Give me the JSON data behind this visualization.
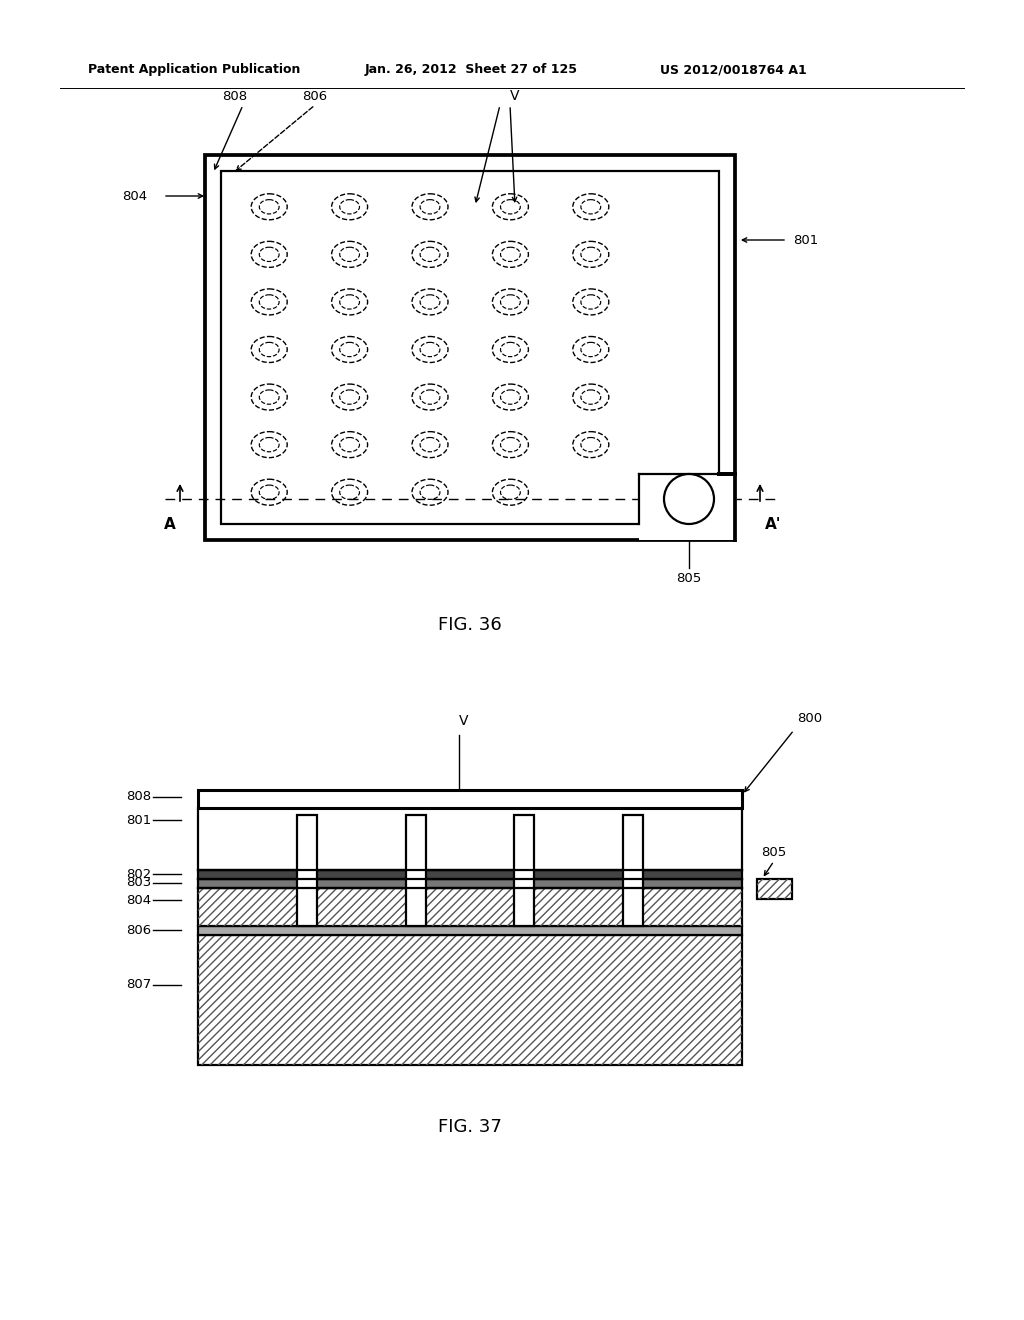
{
  "bg_color": "#ffffff",
  "header_text": "Patent Application Publication",
  "header_date": "Jan. 26, 2012  Sheet 27 of 125",
  "header_patent": "US 2012/0018764 A1",
  "fig36_title": "FIG. 36",
  "fig37_title": "FIG. 37",
  "line_color": "#000000"
}
